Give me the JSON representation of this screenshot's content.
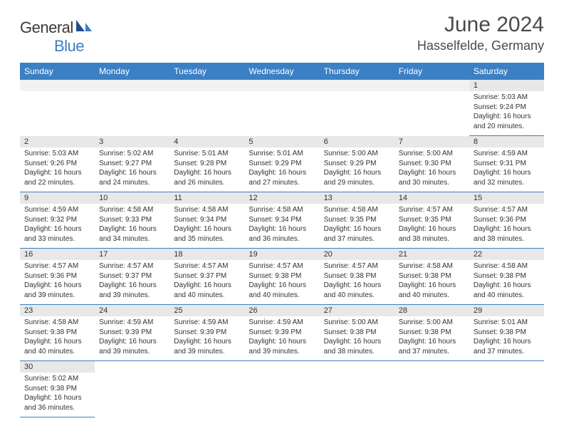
{
  "brand": {
    "part1": "General",
    "part2": "Blue"
  },
  "title": "June 2024",
  "location": "Hasselfelde, Germany",
  "colors": {
    "header_bg": "#3b7fc4",
    "header_text": "#ffffff",
    "daynum_bg": "#e8e8e8",
    "border": "#3b7fc4",
    "text": "#333333",
    "title_text": "#4a4a4a"
  },
  "fonts": {
    "title_size": 30,
    "location_size": 18,
    "dayhead_size": 12,
    "daynum_size": 11,
    "info_size": 10
  },
  "day_headers": [
    "Sunday",
    "Monday",
    "Tuesday",
    "Wednesday",
    "Thursday",
    "Friday",
    "Saturday"
  ],
  "weeks": [
    [
      null,
      null,
      null,
      null,
      null,
      null,
      {
        "n": "1",
        "sr": "5:03 AM",
        "ss": "9:24 PM",
        "dl": "16 hours and 20 minutes."
      }
    ],
    [
      {
        "n": "2",
        "sr": "5:03 AM",
        "ss": "9:26 PM",
        "dl": "16 hours and 22 minutes."
      },
      {
        "n": "3",
        "sr": "5:02 AM",
        "ss": "9:27 PM",
        "dl": "16 hours and 24 minutes."
      },
      {
        "n": "4",
        "sr": "5:01 AM",
        "ss": "9:28 PM",
        "dl": "16 hours and 26 minutes."
      },
      {
        "n": "5",
        "sr": "5:01 AM",
        "ss": "9:29 PM",
        "dl": "16 hours and 27 minutes."
      },
      {
        "n": "6",
        "sr": "5:00 AM",
        "ss": "9:29 PM",
        "dl": "16 hours and 29 minutes."
      },
      {
        "n": "7",
        "sr": "5:00 AM",
        "ss": "9:30 PM",
        "dl": "16 hours and 30 minutes."
      },
      {
        "n": "8",
        "sr": "4:59 AM",
        "ss": "9:31 PM",
        "dl": "16 hours and 32 minutes."
      }
    ],
    [
      {
        "n": "9",
        "sr": "4:59 AM",
        "ss": "9:32 PM",
        "dl": "16 hours and 33 minutes."
      },
      {
        "n": "10",
        "sr": "4:58 AM",
        "ss": "9:33 PM",
        "dl": "16 hours and 34 minutes."
      },
      {
        "n": "11",
        "sr": "4:58 AM",
        "ss": "9:34 PM",
        "dl": "16 hours and 35 minutes."
      },
      {
        "n": "12",
        "sr": "4:58 AM",
        "ss": "9:34 PM",
        "dl": "16 hours and 36 minutes."
      },
      {
        "n": "13",
        "sr": "4:58 AM",
        "ss": "9:35 PM",
        "dl": "16 hours and 37 minutes."
      },
      {
        "n": "14",
        "sr": "4:57 AM",
        "ss": "9:35 PM",
        "dl": "16 hours and 38 minutes."
      },
      {
        "n": "15",
        "sr": "4:57 AM",
        "ss": "9:36 PM",
        "dl": "16 hours and 38 minutes."
      }
    ],
    [
      {
        "n": "16",
        "sr": "4:57 AM",
        "ss": "9:36 PM",
        "dl": "16 hours and 39 minutes."
      },
      {
        "n": "17",
        "sr": "4:57 AM",
        "ss": "9:37 PM",
        "dl": "16 hours and 39 minutes."
      },
      {
        "n": "18",
        "sr": "4:57 AM",
        "ss": "9:37 PM",
        "dl": "16 hours and 40 minutes."
      },
      {
        "n": "19",
        "sr": "4:57 AM",
        "ss": "9:38 PM",
        "dl": "16 hours and 40 minutes."
      },
      {
        "n": "20",
        "sr": "4:57 AM",
        "ss": "9:38 PM",
        "dl": "16 hours and 40 minutes."
      },
      {
        "n": "21",
        "sr": "4:58 AM",
        "ss": "9:38 PM",
        "dl": "16 hours and 40 minutes."
      },
      {
        "n": "22",
        "sr": "4:58 AM",
        "ss": "9:38 PM",
        "dl": "16 hours and 40 minutes."
      }
    ],
    [
      {
        "n": "23",
        "sr": "4:58 AM",
        "ss": "9:38 PM",
        "dl": "16 hours and 40 minutes."
      },
      {
        "n": "24",
        "sr": "4:59 AM",
        "ss": "9:39 PM",
        "dl": "16 hours and 39 minutes."
      },
      {
        "n": "25",
        "sr": "4:59 AM",
        "ss": "9:39 PM",
        "dl": "16 hours and 39 minutes."
      },
      {
        "n": "26",
        "sr": "4:59 AM",
        "ss": "9:39 PM",
        "dl": "16 hours and 39 minutes."
      },
      {
        "n": "27",
        "sr": "5:00 AM",
        "ss": "9:38 PM",
        "dl": "16 hours and 38 minutes."
      },
      {
        "n": "28",
        "sr": "5:00 AM",
        "ss": "9:38 PM",
        "dl": "16 hours and 37 minutes."
      },
      {
        "n": "29",
        "sr": "5:01 AM",
        "ss": "9:38 PM",
        "dl": "16 hours and 37 minutes."
      }
    ],
    [
      {
        "n": "30",
        "sr": "5:02 AM",
        "ss": "9:38 PM",
        "dl": "16 hours and 36 minutes."
      },
      null,
      null,
      null,
      null,
      null,
      null
    ]
  ],
  "labels": {
    "sunrise": "Sunrise:",
    "sunset": "Sunset:",
    "daylight": "Daylight:"
  }
}
